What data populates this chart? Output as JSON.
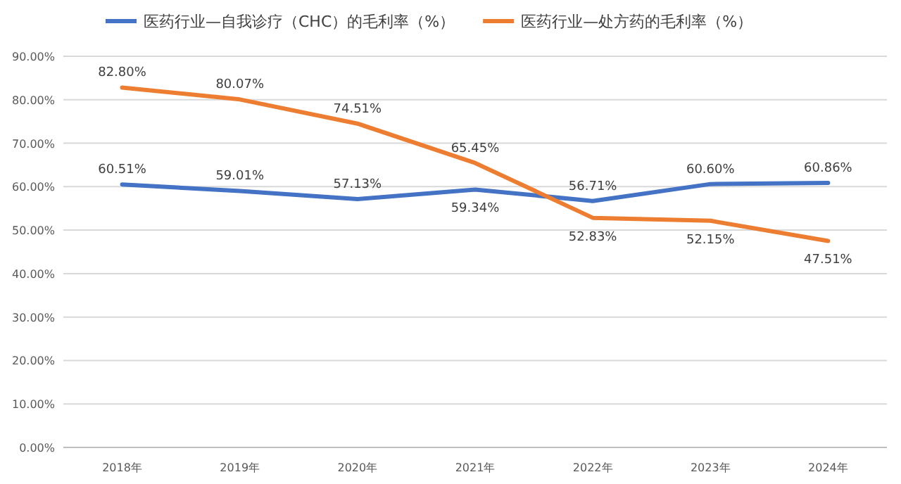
{
  "chart_data": {
    "type": "line",
    "categories": [
      "2018年",
      "2019年",
      "2020年",
      "2021年",
      "2022年",
      "2023年",
      "2024年"
    ],
    "series": [
      {
        "name": "医药行业—自我诊疗（CHC）的毛利率（%）",
        "color": "#4472c4",
        "values": [
          60.51,
          59.01,
          57.13,
          59.34,
          56.71,
          60.6,
          60.86
        ],
        "value_labels": [
          "60.51%",
          "59.01%",
          "57.13%",
          "59.34%",
          "56.71%",
          "60.60%",
          "60.86%"
        ]
      },
      {
        "name": "医药行业—处方药的毛利率（%）",
        "color": "#ed7d31",
        "values": [
          82.8,
          80.07,
          74.51,
          65.45,
          52.83,
          52.15,
          47.51
        ],
        "value_labels": [
          "82.80%",
          "80.07%",
          "74.51%",
          "65.45%",
          "52.83%",
          "52.15%",
          "47.51%"
        ]
      }
    ],
    "ylim": [
      0,
      90
    ],
    "yticks": [
      {
        "value": 0,
        "label": "0.00%"
      },
      {
        "value": 10,
        "label": "10.00%"
      },
      {
        "value": 20,
        "label": "20.00%"
      },
      {
        "value": 30,
        "label": "30.00%"
      },
      {
        "value": 40,
        "label": "40.00%"
      },
      {
        "value": 50,
        "label": "50.00%"
      },
      {
        "value": 60,
        "label": "60.00%"
      },
      {
        "value": 70,
        "label": "70.00%"
      },
      {
        "value": 80,
        "label": "80.00%"
      },
      {
        "value": 90,
        "label": "90.00%"
      }
    ],
    "grid": "y",
    "legend": "top",
    "marker": "none",
    "line_style": "solid"
  }
}
